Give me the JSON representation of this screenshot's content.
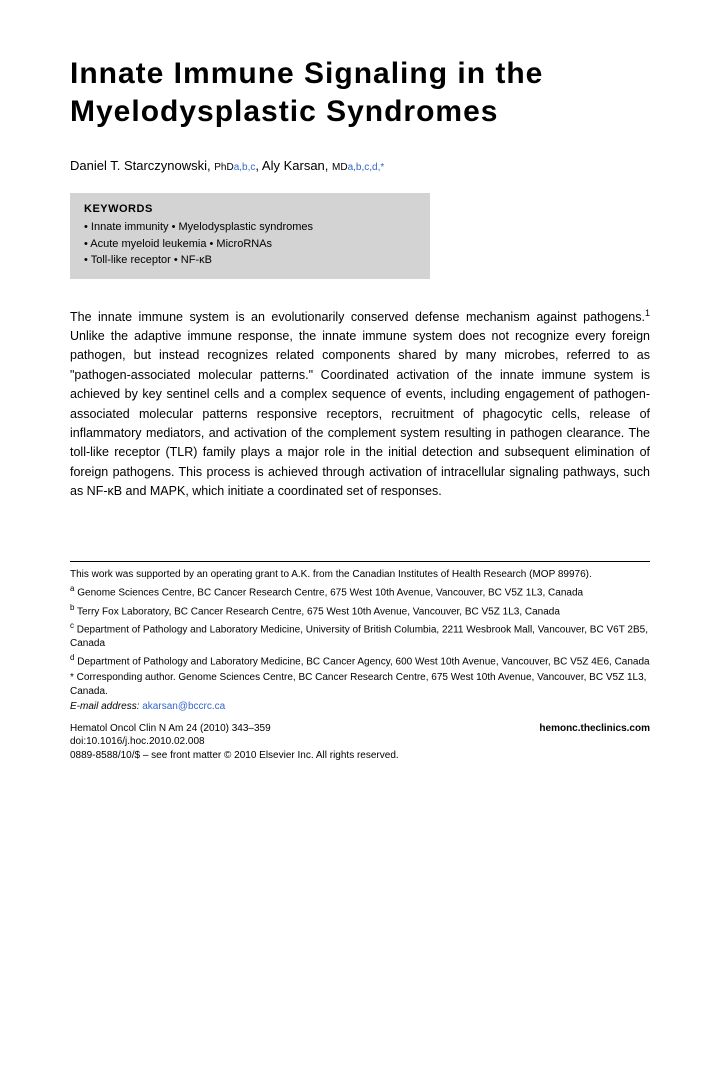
{
  "title": "Innate Immune Signaling in the Myelodysplastic Syndromes",
  "authors": {
    "a1_name": "Daniel T. Starczynowski, ",
    "a1_degree": "PhD",
    "a1_affil": "a,b,c",
    "sep": ", ",
    "a2_name": "Aly Karsan, ",
    "a2_degree": "MD",
    "a2_affil": "a,b,c,d,",
    "a2_star": "*"
  },
  "keywords": {
    "title": "KEYWORDS",
    "line1": "• Innate immunity • Myelodysplastic syndromes",
    "line2": "• Acute myeloid leukemia • MicroRNAs",
    "line3": "• Toll-like receptor • NF-κB"
  },
  "body": {
    "p1a": "The innate immune system is an evolutionarily conserved defense mechanism against pathogens.",
    "p1_sup": "1",
    "p1b": " Unlike the adaptive immune response, the innate immune system does not recognize every foreign pathogen, but instead recognizes related components shared by many microbes, referred to as \"pathogen-associated molecular patterns.\" Coordinated activation of the innate immune system is achieved by key sentinel cells and a complex sequence of events, including engagement of pathogen-associated molecular patterns responsive receptors, recruitment of phagocytic cells, release of inflammatory mediators, and activation of the complement system resulting in pathogen clearance. The toll-like receptor (TLR) family plays a major role in the initial detection and subsequent elimination of foreign pathogens. This process is achieved through activation of intracellular signaling pathways, such as NF-κB and MAPK, which initiate a coordinated set of responses."
  },
  "footnotes": {
    "funding": "This work was supported by an operating grant to A.K. from the Canadian Institutes of Health Research (MOP 89976).",
    "a_sup": "a",
    "a": " Genome Sciences Centre, BC Cancer Research Centre, 675 West 10th Avenue, Vancouver, BC V5Z 1L3, Canada",
    "b_sup": "b",
    "b": " Terry Fox Laboratory, BC Cancer Research Centre, 675 West 10th Avenue, Vancouver, BC V5Z 1L3, Canada",
    "c_sup": "c",
    "c": " Department of Pathology and Laboratory Medicine, University of British Columbia, 2211 Wesbrook Mall, Vancouver, BC V6T 2B5, Canada",
    "d_sup": "d",
    "d": " Department of Pathology and Laboratory Medicine, BC Cancer Agency, 600 West 10th Avenue, Vancouver, BC V5Z 4E6, Canada",
    "corr": "* Corresponding author. Genome Sciences Centre, BC Cancer Research Centre, 675 West 10th Avenue, Vancouver, BC V5Z 1L3, Canada.",
    "email_label": "E-mail address: ",
    "email": "akarsan@bccrc.ca"
  },
  "citation": {
    "line1": "Hematol Oncol Clin N Am 24 (2010) 343–359",
    "line2": "doi:10.1016/j.hoc.2010.02.008",
    "line3": "0889-8588/10/$ – see front matter © 2010 Elsevier Inc. All rights reserved.",
    "site": "hemonc.theclinics.com"
  },
  "colors": {
    "link": "#3366cc",
    "keywords_bg": "#d3d3d3",
    "text": "#000000",
    "bg": "#ffffff"
  },
  "typography": {
    "title_fontsize": 30,
    "body_fontsize": 12.5,
    "footnote_fontsize": 10,
    "keywords_fontsize": 11
  }
}
